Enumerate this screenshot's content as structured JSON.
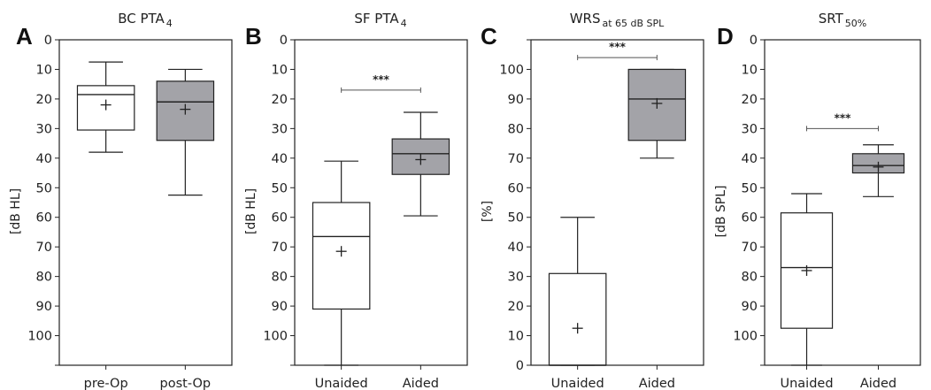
{
  "chart_data": [
    {
      "type": "box",
      "panel": "A",
      "title_main": "BC PTA",
      "title_sub": "4",
      "ylabel": "[dB HL]",
      "categories": [
        "pre-Op",
        "post-Op"
      ],
      "ylim": [
        0,
        110
      ],
      "yticks": [
        0,
        10,
        20,
        30,
        40,
        50,
        60,
        70,
        80,
        90,
        100
      ],
      "y_inverted": true,
      "boxes": [
        {
          "label": "pre-Op",
          "whisker_low": 7.5,
          "q1": 15.5,
          "median": 18.5,
          "q3": 30.5,
          "whisker_high": 38,
          "mean": 22,
          "fill": "#ffffff"
        },
        {
          "label": "post-Op",
          "whisker_low": 10,
          "q1": 14,
          "median": 21,
          "q3": 34,
          "whisker_high": 52.5,
          "mean": 23.5,
          "fill": "#a3a3a8"
        }
      ],
      "significance": ""
    },
    {
      "type": "box",
      "panel": "B",
      "title_main": "SF PTA",
      "title_sub": "4",
      "ylabel": "[dB HL]",
      "categories": [
        "Unaided",
        "Aided"
      ],
      "ylim": [
        0,
        110
      ],
      "yticks": [
        0,
        10,
        20,
        30,
        40,
        50,
        60,
        70,
        80,
        90,
        100
      ],
      "y_inverted": true,
      "boxes": [
        {
          "label": "Unaided",
          "whisker_low": 41,
          "q1": 55,
          "median": 66.5,
          "q3": 91,
          "whisker_high": 110,
          "mean": 71.5,
          "fill": "#ffffff"
        },
        {
          "label": "Aided",
          "whisker_low": 24.5,
          "q1": 33.5,
          "median": 38.5,
          "q3": 45.5,
          "whisker_high": 59.5,
          "mean": 40.5,
          "fill": "#a3a3a8"
        }
      ],
      "significance": "***",
      "sig_y": 17
    },
    {
      "type": "box",
      "panel": "C",
      "title_main": "WRS",
      "title_sub": "at 65 dB SPL",
      "ylabel": "[%]",
      "categories": [
        "Unaided",
        "Aided"
      ],
      "ylim": [
        0,
        110
      ],
      "yticks": [
        0,
        10,
        20,
        30,
        40,
        50,
        60,
        70,
        80,
        90,
        100
      ],
      "y_inverted": false,
      "boxes": [
        {
          "label": "Unaided",
          "whisker_low": 0,
          "q1": 0,
          "median": 0,
          "q3": 31,
          "whisker_high": 50,
          "mean": 12.5,
          "fill": "#ffffff"
        },
        {
          "label": "Aided",
          "whisker_low": 70,
          "q1": 76,
          "median": 90,
          "q3": 100,
          "whisker_high": 100,
          "mean": 88.5,
          "fill": "#a3a3a8"
        }
      ],
      "significance": "***",
      "sig_y": 104
    },
    {
      "type": "box",
      "panel": "D",
      "title_main": "SRT",
      "title_sub": "50%",
      "ylabel": "[dB SPL]",
      "categories": [
        "Unaided",
        "Aided"
      ],
      "ylim": [
        0,
        110
      ],
      "yticks": [
        0,
        10,
        20,
        30,
        40,
        50,
        60,
        70,
        80,
        90,
        100
      ],
      "y_inverted": true,
      "boxes": [
        {
          "label": "Unaided",
          "whisker_low": 52,
          "q1": 58.5,
          "median": 77,
          "q3": 97.5,
          "whisker_high": 110,
          "mean": 78,
          "fill": "#ffffff"
        },
        {
          "label": "Aided",
          "whisker_low": 35.5,
          "q1": 38.5,
          "median": 42.5,
          "q3": 45,
          "whisker_high": 53,
          "mean": 43,
          "fill": "#a3a3a8"
        }
      ],
      "significance": "***",
      "sig_y": 30
    }
  ]
}
